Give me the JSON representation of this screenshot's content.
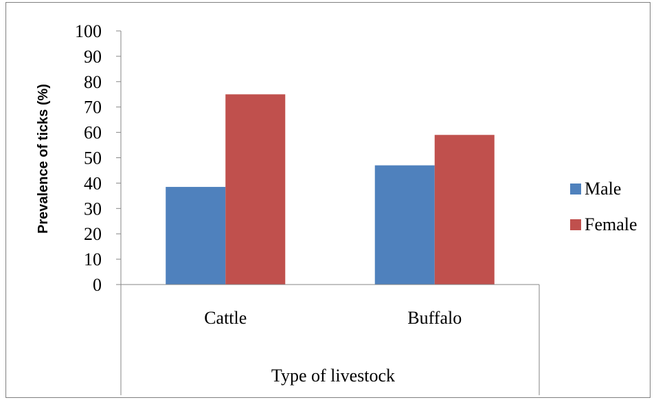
{
  "chart_data": {
    "type": "bar",
    "categories": [
      "Cattle",
      "Buffalo"
    ],
    "series": [
      {
        "name": "Male",
        "values": [
          38.5,
          47
        ],
        "color": "#4F81BD"
      },
      {
        "name": "Female",
        "values": [
          75,
          59
        ],
        "color": "#C0504D"
      }
    ],
    "xlabel": "Type of livestock",
    "ylabel": "Prevalence of ticks (%)",
    "ylim": [
      0,
      100
    ],
    "yticks": [
      "0",
      "10",
      "20",
      "30",
      "40",
      "50",
      "60",
      "70",
      "80",
      "90",
      "100"
    ],
    "grid": false,
    "legend_position": "right"
  }
}
